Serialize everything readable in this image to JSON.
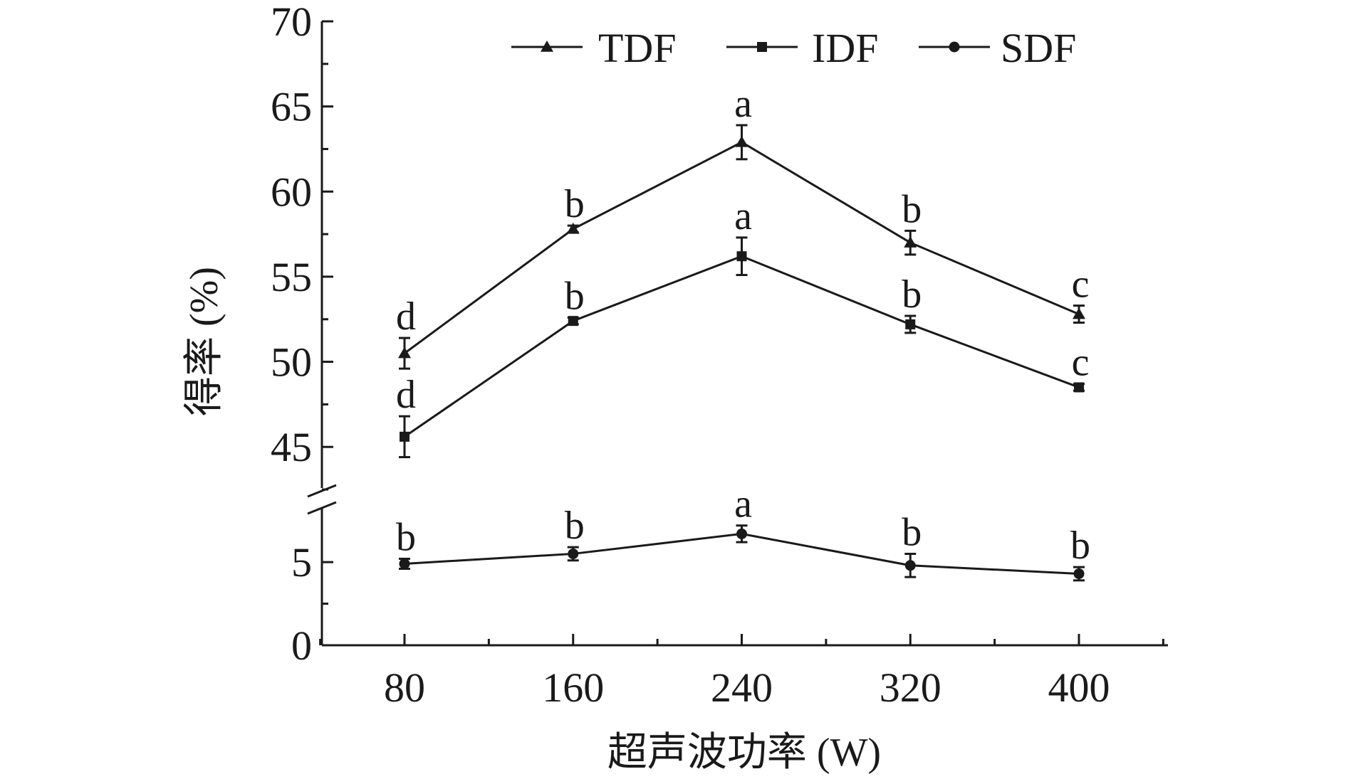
{
  "chart_data": {
    "type": "line",
    "title": "",
    "xlabel": "超声波功率 (W)",
    "ylabel": "得率 (%)",
    "x": [
      80,
      160,
      240,
      320,
      400
    ],
    "x_tick_labels": [
      "80",
      "160",
      "240",
      "320",
      "400"
    ],
    "y_tick_labels_upper": [
      "45",
      "50",
      "55",
      "60",
      "65",
      "70"
    ],
    "y_tick_labels_lower": [
      "0",
      "5"
    ],
    "ylim_upper": [
      42,
      70
    ],
    "ylim_lower": [
      0,
      8
    ],
    "axis_break": true,
    "grid": false,
    "legend_position": "top",
    "series": [
      {
        "name": "TDF",
        "marker": "triangle",
        "values": [
          50.5,
          57.8,
          62.9,
          57.0,
          52.8
        ],
        "errors": [
          0.9,
          0.2,
          1.0,
          0.7,
          0.5
        ],
        "letters": [
          "d",
          "b",
          "a",
          "b",
          "c"
        ]
      },
      {
        "name": "IDF",
        "marker": "square",
        "values": [
          45.6,
          52.4,
          56.2,
          52.2,
          48.5
        ],
        "errors": [
          1.2,
          0.2,
          1.1,
          0.5,
          0.2
        ],
        "letters": [
          "d",
          "b",
          "a",
          "b",
          "c"
        ]
      },
      {
        "name": "SDF",
        "marker": "circle",
        "values": [
          4.9,
          5.5,
          6.7,
          4.8,
          4.3
        ],
        "errors": [
          0.3,
          0.4,
          0.5,
          0.7,
          0.4
        ],
        "letters": [
          "b",
          "b",
          "a",
          "b",
          "b"
        ]
      }
    ]
  }
}
